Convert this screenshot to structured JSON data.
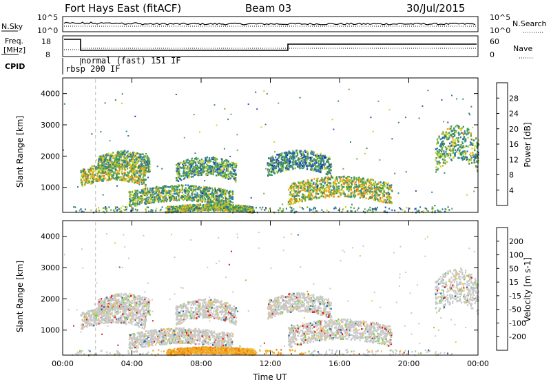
{
  "header": {
    "station": "Fort Hays East (fitACF)",
    "beam": "Beam 03",
    "date": "30/Jul/2015"
  },
  "top_panel": {
    "left_label": "N.Sky",
    "left_ticks": [
      "10^5",
      "10^0"
    ],
    "right_ticks": [
      "10^5",
      "10^0"
    ],
    "right_label": "N.Search"
  },
  "freq_panel": {
    "left_label_1": "Freq.",
    "left_label_2": "[MHz]",
    "left_ticks": [
      "18",
      "8"
    ],
    "right_ticks": [
      "60",
      "0"
    ],
    "right_label": "Nave",
    "cpid_label": "CPID",
    "mode_1": "rbsp 200 IF",
    "mode_2": "normal (fast) 151 IF"
  },
  "colors": {
    "power": [
      "#0a1fe0",
      "#2a4fb0",
      "#2e7fa8",
      "#3b8f5b",
      "#68b040",
      "#d0d020",
      "#f2a01e",
      "#ee6a10",
      "#e01a10"
    ],
    "velocity": [
      "#e01810",
      "#f07a10",
      "#f0a820",
      "#f4c24a",
      "#c8c8c8",
      "#7ad040",
      "#3aa040",
      "#2a6aa0",
      "#1a2fc8"
    ]
  },
  "chart_data": [
    {
      "type": "heatmap",
      "title": "",
      "xlabel": "",
      "ylabel": "Slant Range [km]",
      "x_ticks": [
        "00:00",
        "04:00",
        "08:00",
        "12:00",
        "16:00",
        "20:00",
        "00:00"
      ],
      "xlim": [
        0,
        24
      ],
      "ylim": [
        200,
        4500
      ],
      "y_ticks": [
        1000,
        2000,
        3000,
        4000
      ],
      "colorbar": {
        "label": "Power [dB]",
        "ticks": [
          "4",
          "8",
          "12",
          "16",
          "20",
          "24",
          "28"
        ],
        "range": [
          0,
          30
        ]
      },
      "regions": [
        {
          "t0": 1.0,
          "t1": 4.8,
          "r0": 1150,
          "r1": 1700,
          "level": 0.55
        },
        {
          "t0": 2.0,
          "t1": 5.0,
          "r0": 1600,
          "r1": 2100,
          "level": 0.45
        },
        {
          "t0": 3.8,
          "t1": 9.8,
          "r0": 500,
          "r1": 1000,
          "level": 0.45
        },
        {
          "t0": 6.5,
          "t1": 10.0,
          "r0": 1300,
          "r1": 1900,
          "level": 0.4
        },
        {
          "t0": 6.0,
          "t1": 11.0,
          "r0": 250,
          "r1": 450,
          "level": 0.5
        },
        {
          "t0": 11.8,
          "t1": 15.5,
          "r0": 1500,
          "r1": 2100,
          "level": 0.35
        },
        {
          "t0": 13.0,
          "t1": 19.0,
          "r0": 600,
          "r1": 1250,
          "level": 0.55
        },
        {
          "t0": 21.5,
          "t1": 24.0,
          "r0": 1700,
          "r1": 2800,
          "level": 0.45
        }
      ]
    },
    {
      "type": "heatmap",
      "title": "",
      "xlabel": "Time UT",
      "ylabel": "Slant Range [km]",
      "x_ticks": [
        "00:00",
        "04:00",
        "08:00",
        "12:00",
        "16:00",
        "20:00",
        "00:00"
      ],
      "xlim": [
        0,
        24
      ],
      "ylim": [
        200,
        4500
      ],
      "y_ticks": [
        1000,
        2000,
        3000,
        4000
      ],
      "colorbar": {
        "label": "Velocity [m s-1]",
        "ticks": [
          "-200",
          "-100",
          "-50",
          "-15",
          "15",
          "50",
          "100",
          "200"
        ],
        "range": [
          -250,
          250
        ]
      },
      "regions": [
        {
          "t0": 1.0,
          "t1": 4.8,
          "r0": 1150,
          "r1": 1700,
          "level": 0.0
        },
        {
          "t0": 2.0,
          "t1": 5.0,
          "r0": 1600,
          "r1": 2100,
          "level": 0.0
        },
        {
          "t0": 3.8,
          "t1": 9.8,
          "r0": 500,
          "r1": 1000,
          "level": 0.0
        },
        {
          "t0": 6.5,
          "t1": 10.0,
          "r0": 1300,
          "r1": 1900,
          "level": 0.0
        },
        {
          "t0": 6.0,
          "t1": 11.0,
          "r0": 250,
          "r1": 450,
          "level": -60
        },
        {
          "t0": 11.8,
          "t1": 15.5,
          "r0": 1500,
          "r1": 2100,
          "level": 0.0
        },
        {
          "t0": 13.0,
          "t1": 19.0,
          "r0": 600,
          "r1": 1250,
          "level": 0.0
        },
        {
          "t0": 21.5,
          "t1": 24.0,
          "r0": 1700,
          "r1": 2800,
          "level": 0.0
        }
      ]
    }
  ]
}
